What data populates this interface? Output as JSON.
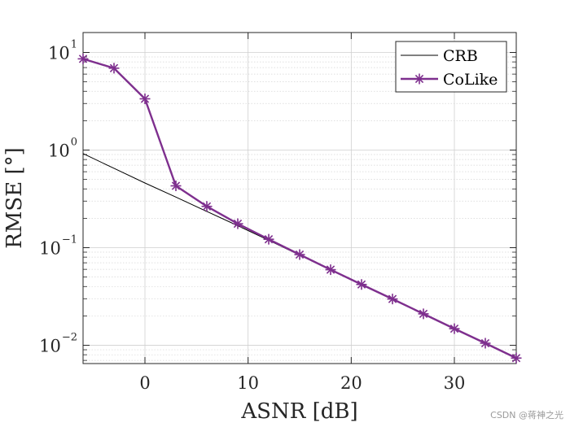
{
  "chart_data": {
    "type": "line",
    "yscale": "log",
    "xlabel": "ASNR [dB]",
    "ylabel": "RMSE [°]",
    "xlim": [
      -6,
      36
    ],
    "ylim": [
      0.0065,
      16
    ],
    "x_ticks": [
      0,
      10,
      20,
      30
    ],
    "x_tick_labels": [
      "0",
      "10",
      "20",
      "30"
    ],
    "y_ticks": [
      0.01,
      0.1,
      1,
      10
    ],
    "y_tick_labels": [
      {
        "base": "10",
        "exp": "−2"
      },
      {
        "base": "10",
        "exp": "−1"
      },
      {
        "base": "10",
        "exp": "0"
      },
      {
        "base": "10",
        "exp": "1"
      }
    ],
    "grid": true,
    "minor_grid": true,
    "legend_position": "top-right",
    "series": [
      {
        "name": "CRB",
        "color": "#000000",
        "marker": "none",
        "x": [
          -6,
          -3,
          0,
          3,
          6,
          9,
          12,
          15,
          18,
          21,
          24,
          27,
          30,
          33,
          36
        ],
        "values": [
          0.92,
          0.65,
          0.46,
          0.33,
          0.235,
          0.168,
          0.119,
          0.084,
          0.059,
          0.042,
          0.0297,
          0.021,
          0.0148,
          0.0105,
          0.0074
        ]
      },
      {
        "name": "CoLike",
        "color": "#7e2f8e",
        "marker": "asterisk",
        "x": [
          -6,
          -3,
          0,
          3,
          6,
          9,
          12,
          15,
          18,
          21,
          24,
          27,
          30,
          33,
          36
        ],
        "values": [
          8.6,
          6.9,
          3.35,
          0.43,
          0.265,
          0.176,
          0.122,
          0.085,
          0.0595,
          0.042,
          0.0298,
          0.021,
          0.0148,
          0.0105,
          0.0074
        ]
      }
    ]
  },
  "watermark": "CSDN @蒋神之光"
}
